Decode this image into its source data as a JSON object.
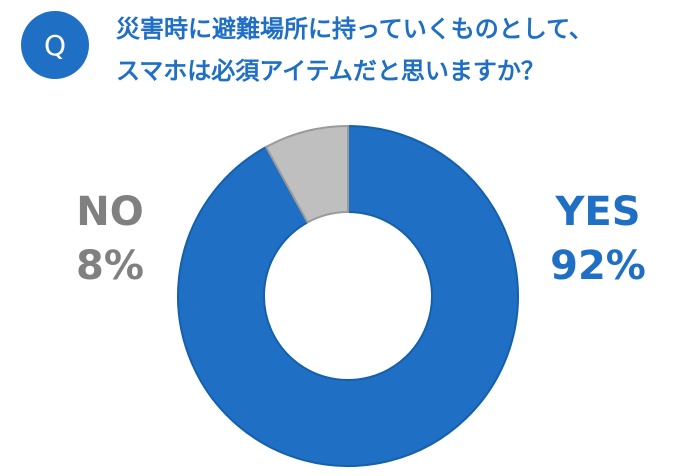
{
  "badge": "Q",
  "chart_data": {
    "type": "pie",
    "title": [
      "災害時に避難場所に持っていくものとして、",
      "スマホは必須アイテムだと思いますか？"
    ],
    "categories": [
      "YES",
      "NO"
    ],
    "values": [
      92,
      8
    ],
    "value_labels": [
      "92%",
      "8%"
    ],
    "colors": [
      "#1f6fc5",
      "#bfbfbf"
    ],
    "label_colors": [
      "#1f6fc5",
      "#808080"
    ],
    "donut": true
  }
}
